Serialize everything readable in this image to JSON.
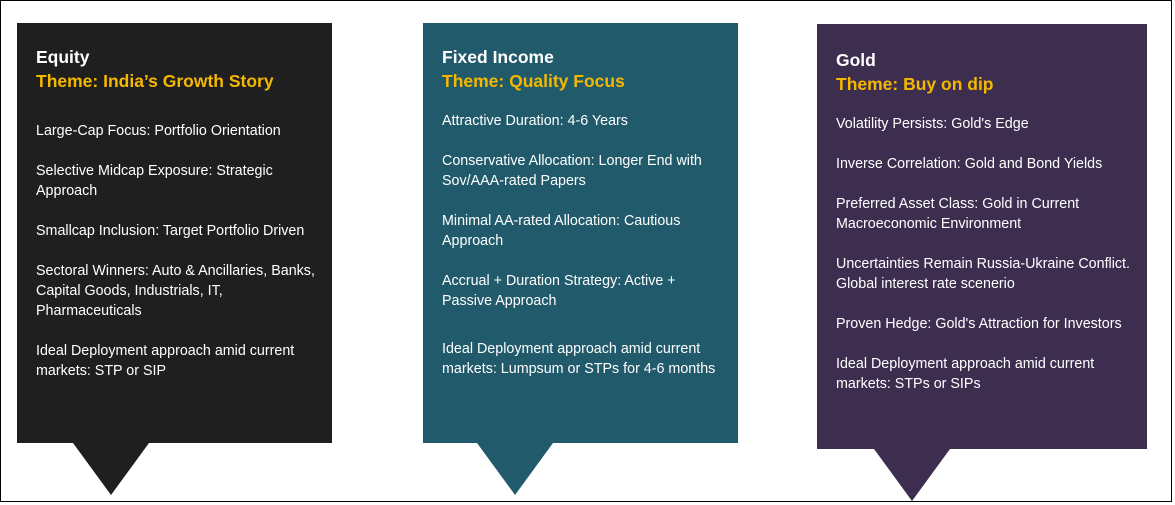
{
  "cards": [
    {
      "title": "Equity",
      "theme": "Theme: India’s Growth Story",
      "items": [
        "Large-Cap Focus: Portfolio Orientation",
        "Selective Midcap Exposure: Strategic Approach",
        "Smallcap Inclusion: Target Portfolio Driven",
        "Sectoral Winners: Auto & Ancillaries, Banks, Capital Goods, Industrials, IT, Pharmaceuticals",
        "Ideal Deployment approach amid current markets: STP or SIP"
      ],
      "color": "#1f1f1f"
    },
    {
      "title": "Fixed Income",
      "theme": "Theme: Quality Focus",
      "items": [
        "Attractive Duration: 4-6 Years",
        "Conservative Allocation: Longer End with Sov/AAA-rated Papers",
        "Minimal AA-rated Allocation: Cautious Approach",
        "Accrual + Duration Strategy: Active + Passive Approach",
        "Ideal Deployment approach amid current markets: Lumpsum or STPs for 4-6 months"
      ],
      "color": "#205a6b"
    },
    {
      "title": "Gold",
      "theme": "Theme: Buy on dip",
      "items": [
        "Volatility Persists: Gold's Edge",
        "Inverse Correlation: Gold and Bond Yields",
        "Preferred Asset Class: Gold in Current Macroeconomic Environment",
        "Uncertainties Remain Russia-Ukraine Conflict. Global interest rate scenerio",
        "Proven Hedge: Gold's Attraction for Investors",
        "Ideal Deployment approach amid current markets: STPs or SIPs"
      ],
      "color": "#3d2e50"
    }
  ],
  "theme_color": "#f5b800"
}
